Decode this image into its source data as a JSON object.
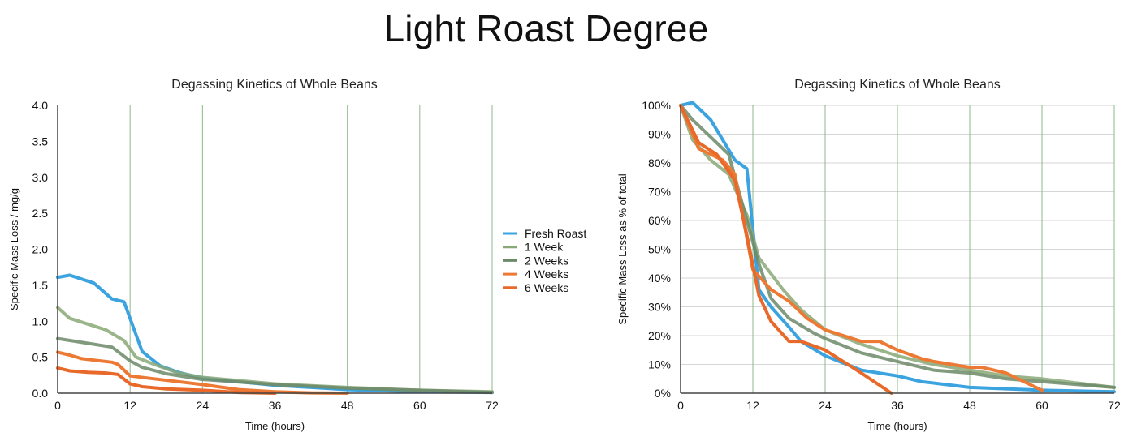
{
  "title": "Light Roast Degree",
  "colors": {
    "Fresh Roast": "#3aa3e0",
    "1 Week": "#8aa877",
    "2 Weeks": "#6c8a68",
    "4 Weeks": "#ec7a35",
    "6 Weeks": "#e8692a",
    "grid_vertical": "#8fb889",
    "grid_horizontal": "#d6d6d6",
    "axis": "#444444"
  },
  "chart_data": [
    {
      "type": "line",
      "title": "Degassing Kinetics of Whole Beans",
      "xlabel": "Time (hours)",
      "ylabel": "Specific Mass Loss / mg/g",
      "xlim": [
        0,
        72
      ],
      "ylim": [
        0,
        4.0
      ],
      "xticks": [
        "0",
        "12",
        "24",
        "36",
        "48",
        "60",
        "72"
      ],
      "yticks": [
        "0.0",
        "0.5",
        "1.0",
        "1.5",
        "2.0",
        "2.5",
        "3.0",
        "3.5",
        "4.0"
      ],
      "grid": "vertical",
      "legend": "right",
      "series": [
        {
          "name": "Fresh Roast",
          "x": [
            0,
            2,
            6,
            9,
            11,
            14,
            17,
            20,
            24,
            36,
            48,
            60,
            72
          ],
          "y": [
            1.61,
            1.64,
            1.53,
            1.31,
            1.27,
            0.58,
            0.38,
            0.29,
            0.21,
            0.11,
            0.05,
            0.02,
            0.01
          ]
        },
        {
          "name": "1 Week",
          "x": [
            0,
            2,
            5,
            8,
            11,
            13,
            16,
            20,
            24,
            36,
            48,
            60,
            72
          ],
          "y": [
            1.19,
            1.04,
            0.96,
            0.88,
            0.73,
            0.5,
            0.4,
            0.28,
            0.22,
            0.13,
            0.08,
            0.04,
            0.02
          ]
        },
        {
          "name": "2 Weeks",
          "x": [
            0,
            3,
            6,
            9,
            12,
            14,
            18,
            24,
            36,
            48,
            60,
            72
          ],
          "y": [
            0.76,
            0.72,
            0.68,
            0.64,
            0.45,
            0.36,
            0.27,
            0.19,
            0.12,
            0.07,
            0.04,
            0.01
          ]
        },
        {
          "name": "4 Weeks",
          "x": [
            0,
            2,
            4,
            6,
            9,
            10,
            12,
            16,
            20,
            24,
            30,
            36,
            42,
            48
          ],
          "y": [
            0.57,
            0.53,
            0.48,
            0.46,
            0.43,
            0.4,
            0.24,
            0.2,
            0.16,
            0.12,
            0.05,
            0.02,
            0.005,
            0.0
          ]
        },
        {
          "name": "6 Weeks",
          "x": [
            0,
            2,
            5,
            8,
            10,
            12,
            14,
            18,
            24,
            30,
            36
          ],
          "y": [
            0.35,
            0.31,
            0.29,
            0.28,
            0.26,
            0.13,
            0.09,
            0.06,
            0.04,
            0.01,
            0.0
          ]
        }
      ]
    },
    {
      "type": "line",
      "title": "Degassing Kinetics of Whole Beans",
      "xlabel": "Time (hours)",
      "ylabel": "Specific Mass Loss as % of total",
      "xlim": [
        0,
        72
      ],
      "ylim": [
        0,
        100
      ],
      "xticks": [
        "0",
        "12",
        "24",
        "36",
        "48",
        "60",
        "72"
      ],
      "yticks": [
        "0%",
        "10%",
        "20%",
        "30%",
        "40%",
        "50%",
        "60%",
        "70%",
        "80%",
        "90%",
        "100%"
      ],
      "grid": "both",
      "series": [
        {
          "name": "Fresh Roast",
          "x": [
            0,
            2,
            5,
            9,
            11,
            13,
            15,
            18,
            20,
            24,
            30,
            36,
            40,
            48,
            60,
            72
          ],
          "y": [
            100,
            102,
            95,
            81,
            78,
            36,
            30,
            23,
            18,
            13,
            8,
            6,
            4,
            2,
            1,
            0.5
          ]
        },
        {
          "name": "1 Week",
          "x": [
            0,
            2,
            5,
            8,
            11,
            13,
            17,
            20,
            24,
            30,
            36,
            42,
            48,
            54,
            60,
            72
          ],
          "y": [
            100,
            88,
            81,
            76,
            62,
            47,
            36,
            29,
            22,
            17,
            13,
            10,
            8,
            6,
            5,
            2
          ]
        },
        {
          "name": "2 Weeks",
          "x": [
            0,
            2,
            5,
            8,
            11,
            13,
            15,
            18,
            22,
            24,
            30,
            36,
            42,
            48,
            54,
            60,
            66,
            72
          ],
          "y": [
            100,
            95,
            89,
            83,
            60,
            45,
            33,
            26,
            21,
            19,
            14,
            11,
            8,
            7,
            5,
            4,
            3,
            2
          ]
        },
        {
          "name": "4 Weeks",
          "x": [
            0,
            3,
            7,
            9,
            12,
            15,
            18,
            21,
            24,
            30,
            33,
            36,
            40,
            42,
            48,
            50,
            54,
            60
          ],
          "y": [
            100,
            85,
            81,
            76,
            43,
            36,
            32,
            26,
            22,
            18,
            18,
            15,
            12,
            11,
            9,
            9,
            7,
            1
          ]
        },
        {
          "name": "6 Weeks",
          "x": [
            0,
            3,
            6,
            9,
            11,
            13,
            15,
            18,
            20,
            24,
            30,
            35
          ],
          "y": [
            100,
            87,
            83,
            74,
            55,
            34,
            25,
            18,
            18,
            15,
            7,
            0
          ]
        }
      ]
    }
  ]
}
